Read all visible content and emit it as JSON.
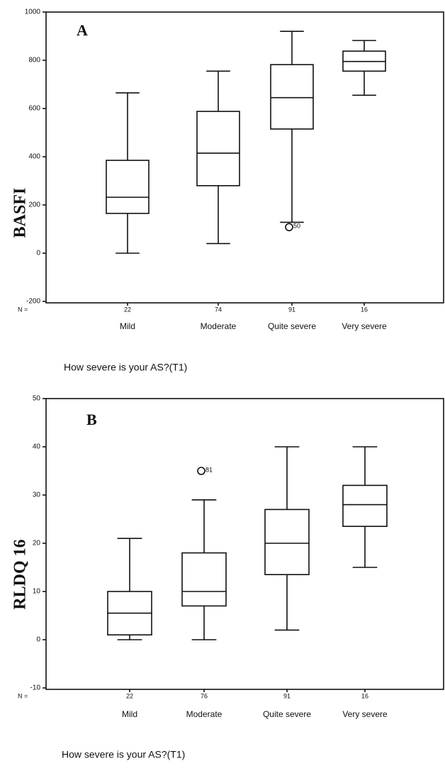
{
  "chart_data": [
    {
      "type": "box",
      "panel_label": "A",
      "y_label": "BASFI",
      "x_label": "How severe is your AS?(T1)",
      "n_label": "N =",
      "categories": [
        "Mild",
        "Moderate",
        "Quite severe",
        "Very severe"
      ],
      "n_values": [
        22,
        74,
        91,
        16
      ],
      "ylim": [
        -200,
        1000
      ],
      "yticks": [
        -200,
        0,
        200,
        400,
        600,
        800,
        1000
      ],
      "boxes": [
        {
          "min": 0,
          "q1": 165,
          "median": 232,
          "q3": 385,
          "max": 665,
          "outliers": []
        },
        {
          "min": 40,
          "q1": 280,
          "median": 415,
          "q3": 588,
          "max": 755,
          "outliers": []
        },
        {
          "min": 128,
          "q1": 515,
          "median": 645,
          "q3": 782,
          "max": 920,
          "outliers": [
            {
              "value": 108,
              "id": 50
            }
          ]
        },
        {
          "min": 655,
          "q1": 755,
          "median": 795,
          "q3": 838,
          "max": 882,
          "outliers": []
        }
      ]
    },
    {
      "type": "box",
      "panel_label": "B",
      "y_label": "RLDQ 16",
      "x_label": "How severe is your AS?(T1)",
      "n_label": "N =",
      "categories": [
        "Mild",
        "Moderate",
        "Quite severe",
        "Very severe"
      ],
      "n_values": [
        22,
        76,
        91,
        16
      ],
      "ylim": [
        -10,
        50
      ],
      "yticks": [
        -10,
        0,
        10,
        20,
        30,
        40,
        50
      ],
      "boxes": [
        {
          "min": 0,
          "q1": 1,
          "median": 5.5,
          "q3": 10,
          "max": 21,
          "outliers": []
        },
        {
          "min": 0,
          "q1": 7,
          "median": 10,
          "q3": 18,
          "max": 29,
          "outliers": [
            {
              "value": 35,
              "id": 81
            }
          ]
        },
        {
          "min": 2,
          "q1": 13.5,
          "median": 20,
          "q3": 27,
          "max": 40,
          "outliers": []
        },
        {
          "min": 15,
          "q1": 23.5,
          "median": 28,
          "q3": 32,
          "max": 40,
          "outliers": []
        }
      ]
    }
  ]
}
